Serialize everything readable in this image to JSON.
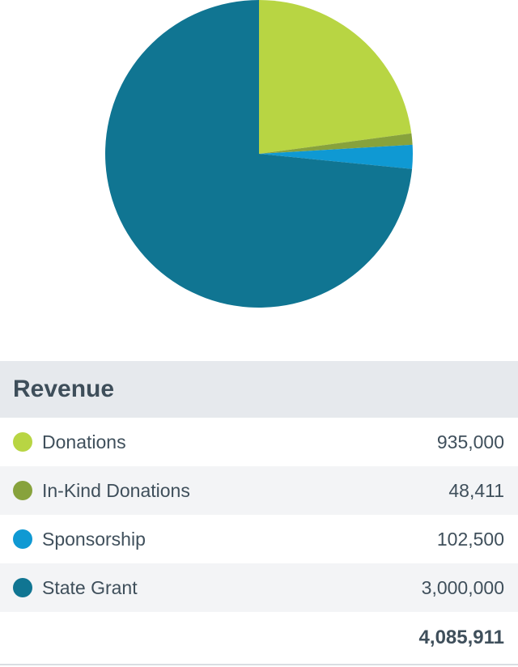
{
  "chart_data": {
    "type": "pie",
    "title": "",
    "slices": [
      {
        "label": "Donations",
        "value": 935000,
        "color": "#b8d543"
      },
      {
        "label": "In-Kind Donations",
        "value": 48411,
        "color": "#87a23c"
      },
      {
        "label": "Sponsorship",
        "value": 102500,
        "color": "#0f99d3"
      },
      {
        "label": "State Grant",
        "value": 3000000,
        "color": "#107592"
      }
    ]
  },
  "table": {
    "header": "Revenue",
    "rows": [
      {
        "label": "Donations",
        "value": "935,000",
        "color": "#b8d543"
      },
      {
        "label": "In-Kind Donations",
        "value": "48,411",
        "color": "#87a23c"
      },
      {
        "label": "Sponsorship",
        "value": "102,500",
        "color": "#0f99d3"
      },
      {
        "label": "State Grant",
        "value": "3,000,000",
        "color": "#107592"
      }
    ],
    "total": "4,085,911"
  }
}
